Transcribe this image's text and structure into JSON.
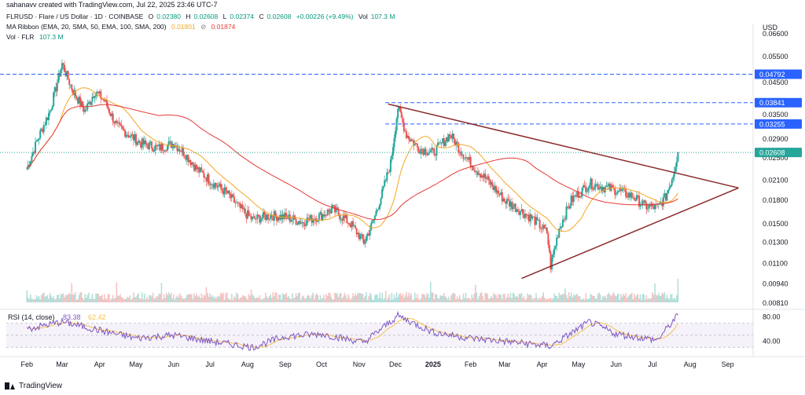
{
  "caption": "sahanavv created with TradingView.com, Jul 22, 2025 23:46 UTC-7",
  "header": {
    "symbol": "FLRUSD · Flare / US Dollar · 1D · COINBASE",
    "o_label": "O",
    "o_value": "0.02380",
    "h_label": "H",
    "h_value": "0.02608",
    "l_label": "L",
    "l_value": "0.02374",
    "c_label": "C",
    "c_value": "0.02608",
    "change": "+0.00226 (+9.49%)",
    "vol_label": "Vol",
    "vol_value": "107.3 M",
    "ma_label": "MA Ribbon (EMA, 20, SMA, 50, EMA, 100, SMA, 200)",
    "ma_value1": "0.01801",
    "ma_value2": "0.01874",
    "vol_flr_label": "Vol · FLR",
    "vol_flr_value": "107.3 M"
  },
  "currency": "USD",
  "footer": {
    "brand": "TradingView"
  },
  "colors": {
    "up": "#26a69a",
    "down": "#ef5350",
    "ema20": "#f5a623",
    "sma200": "#e53935",
    "trendline": "#8b2a2a",
    "dashed": "#2962ff",
    "label_bg": "#2962ff",
    "rsi": "#7e57c2",
    "rsi_ma": "#f5c24b",
    "current": "#26a69a"
  },
  "chart_data": {
    "type": "line",
    "title": "FLRUSD · Flare / US Dollar · 1D · COINBASE",
    "y_axis_ticks": [
      "0.05500",
      "0.04500",
      "0.03500",
      "0.02900",
      "0.02500",
      "0.02100",
      "0.01800",
      "0.01500",
      "0.01300",
      "0.01100",
      "0.00940",
      "0.00810"
    ],
    "y_axis_top_partial": "0.06600",
    "x_axis_ticks": [
      "Feb",
      "Mar",
      "Apr",
      "May",
      "Jun",
      "Jul",
      "Aug",
      "Sep",
      "Oct",
      "Nov",
      "Dec",
      "2025",
      "Feb",
      "Mar",
      "Apr",
      "May",
      "Jun",
      "Jul",
      "Aug",
      "Sep"
    ],
    "price_levels": [
      {
        "value": "0.04792",
        "style": "dashed"
      },
      {
        "value": "0.03841",
        "style": "dashed"
      },
      {
        "value": "0.03255",
        "style": "dashed"
      },
      {
        "value": "0.02608",
        "style": "dotted",
        "current": true
      }
    ],
    "price_series": [
      {
        "date": "2024-02-01",
        "close": 0.023
      },
      {
        "date": "2024-02-10",
        "close": 0.029
      },
      {
        "date": "2024-02-20",
        "close": 0.036
      },
      {
        "date": "2024-03-01",
        "close": 0.052
      },
      {
        "date": "2024-03-10",
        "close": 0.042
      },
      {
        "date": "2024-03-20",
        "close": 0.036
      },
      {
        "date": "2024-03-28",
        "close": 0.042
      },
      {
        "date": "2024-04-05",
        "close": 0.039
      },
      {
        "date": "2024-04-15",
        "close": 0.032
      },
      {
        "date": "2024-04-25",
        "close": 0.03
      },
      {
        "date": "2024-05-05",
        "close": 0.028
      },
      {
        "date": "2024-05-20",
        "close": 0.027
      },
      {
        "date": "2024-06-01",
        "close": 0.028
      },
      {
        "date": "2024-06-10",
        "close": 0.026
      },
      {
        "date": "2024-06-20",
        "close": 0.023
      },
      {
        "date": "2024-07-01",
        "close": 0.021
      },
      {
        "date": "2024-07-15",
        "close": 0.019
      },
      {
        "date": "2024-07-25",
        "close": 0.017
      },
      {
        "date": "2024-08-05",
        "close": 0.0155
      },
      {
        "date": "2024-08-20",
        "close": 0.016
      },
      {
        "date": "2024-09-01",
        "close": 0.0158
      },
      {
        "date": "2024-09-15",
        "close": 0.0152
      },
      {
        "date": "2024-10-01",
        "close": 0.016
      },
      {
        "date": "2024-10-10",
        "close": 0.0168
      },
      {
        "date": "2024-10-25",
        "close": 0.015
      },
      {
        "date": "2024-11-05",
        "close": 0.013
      },
      {
        "date": "2024-11-12",
        "close": 0.015
      },
      {
        "date": "2024-11-20",
        "close": 0.019
      },
      {
        "date": "2024-11-27",
        "close": 0.024
      },
      {
        "date": "2024-12-03",
        "close": 0.037
      },
      {
        "date": "2024-12-10",
        "close": 0.03
      },
      {
        "date": "2024-12-20",
        "close": 0.027
      },
      {
        "date": "2025-01-01",
        "close": 0.026
      },
      {
        "date": "2025-01-15",
        "close": 0.03
      },
      {
        "date": "2025-01-25",
        "close": 0.026
      },
      {
        "date": "2025-02-05",
        "close": 0.023
      },
      {
        "date": "2025-02-15",
        "close": 0.021
      },
      {
        "date": "2025-03-01",
        "close": 0.018
      },
      {
        "date": "2025-03-15",
        "close": 0.0165
      },
      {
        "date": "2025-03-25",
        "close": 0.0155
      },
      {
        "date": "2025-04-05",
        "close": 0.014
      },
      {
        "date": "2025-04-08",
        "close": 0.0108
      },
      {
        "date": "2025-04-15",
        "close": 0.0145
      },
      {
        "date": "2025-04-25",
        "close": 0.018
      },
      {
        "date": "2025-05-10",
        "close": 0.0205
      },
      {
        "date": "2025-05-20",
        "close": 0.02
      },
      {
        "date": "2025-06-01",
        "close": 0.0195
      },
      {
        "date": "2025-06-15",
        "close": 0.0185
      },
      {
        "date": "2025-06-25",
        "close": 0.0172
      },
      {
        "date": "2025-07-05",
        "close": 0.017
      },
      {
        "date": "2025-07-12",
        "close": 0.0185
      },
      {
        "date": "2025-07-18",
        "close": 0.022
      },
      {
        "date": "2025-07-22",
        "close": 0.0261
      }
    ],
    "rsi": {
      "label": "RSI (14, close)",
      "value": "83.38",
      "ma_value": "62.42",
      "ticks": [
        "80.00",
        "40.00"
      ],
      "series": [
        {
          "date": "2024-02-01",
          "v": 60
        },
        {
          "date": "2024-03-01",
          "v": 72
        },
        {
          "date": "2024-04-01",
          "v": 58
        },
        {
          "date": "2024-05-01",
          "v": 45
        },
        {
          "date": "2024-06-01",
          "v": 50
        },
        {
          "date": "2024-07-01",
          "v": 40
        },
        {
          "date": "2024-08-05",
          "v": 30
        },
        {
          "date": "2024-09-01",
          "v": 48
        },
        {
          "date": "2024-10-01",
          "v": 52
        },
        {
          "date": "2024-11-05",
          "v": 38
        },
        {
          "date": "2024-12-03",
          "v": 82
        },
        {
          "date": "2025-01-01",
          "v": 55
        },
        {
          "date": "2025-02-01",
          "v": 45
        },
        {
          "date": "2025-03-01",
          "v": 40
        },
        {
          "date": "2025-04-08",
          "v": 32
        },
        {
          "date": "2025-05-10",
          "v": 72
        },
        {
          "date": "2025-06-01",
          "v": 52
        },
        {
          "date": "2025-07-05",
          "v": 42
        },
        {
          "date": "2025-07-22",
          "v": 83
        }
      ]
    }
  }
}
